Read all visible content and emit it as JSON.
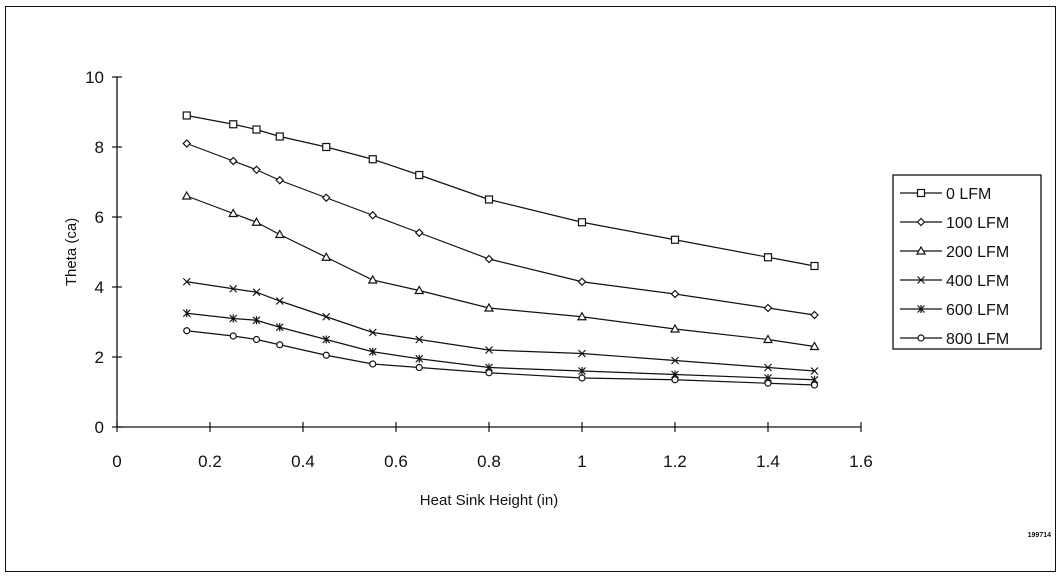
{
  "chart_data": {
    "type": "line",
    "xlabel": "Heat Sink Height (in)",
    "ylabel": "Theta (ca)",
    "xlim": [
      0,
      1.6
    ],
    "ylim": [
      0,
      10
    ],
    "x_ticks": [
      "0",
      "0.2",
      "0.4",
      "0.6",
      "0.8",
      "1",
      "1.2",
      "1.4",
      "1.6"
    ],
    "y_ticks": [
      "0",
      "2",
      "4",
      "6",
      "8",
      "10"
    ],
    "x": [
      0.15,
      0.25,
      0.3,
      0.35,
      0.45,
      0.55,
      0.65,
      0.8,
      1.0,
      1.2,
      1.4,
      1.5
    ],
    "legend_position": "right",
    "grid": false,
    "series": [
      {
        "name": "0 LFM",
        "marker": "square",
        "values": [
          8.9,
          8.65,
          8.5,
          8.3,
          8.0,
          7.65,
          7.2,
          6.5,
          5.85,
          5.35,
          4.85,
          4.6
        ]
      },
      {
        "name": "100 LFM",
        "marker": "diamond",
        "values": [
          8.1,
          7.6,
          7.35,
          7.05,
          6.55,
          6.05,
          5.55,
          4.8,
          4.15,
          3.8,
          3.4,
          3.2
        ]
      },
      {
        "name": "200 LFM",
        "marker": "triangle",
        "values": [
          6.6,
          6.1,
          5.85,
          5.5,
          4.85,
          4.2,
          3.9,
          3.4,
          3.15,
          2.8,
          2.5,
          2.3
        ]
      },
      {
        "name": "400 LFM",
        "marker": "x",
        "values": [
          4.15,
          3.95,
          3.85,
          3.6,
          3.15,
          2.7,
          2.5,
          2.2,
          2.1,
          1.9,
          1.7,
          1.6
        ]
      },
      {
        "name": "600 LFM",
        "marker": "asterisk",
        "values": [
          3.25,
          3.1,
          3.05,
          2.85,
          2.5,
          2.15,
          1.95,
          1.7,
          1.6,
          1.5,
          1.4,
          1.35
        ]
      },
      {
        "name": "800 LFM",
        "marker": "circle",
        "values": [
          2.75,
          2.6,
          2.5,
          2.35,
          2.05,
          1.8,
          1.7,
          1.55,
          1.4,
          1.35,
          1.25,
          1.2
        ]
      }
    ]
  },
  "figure_id": "199714"
}
